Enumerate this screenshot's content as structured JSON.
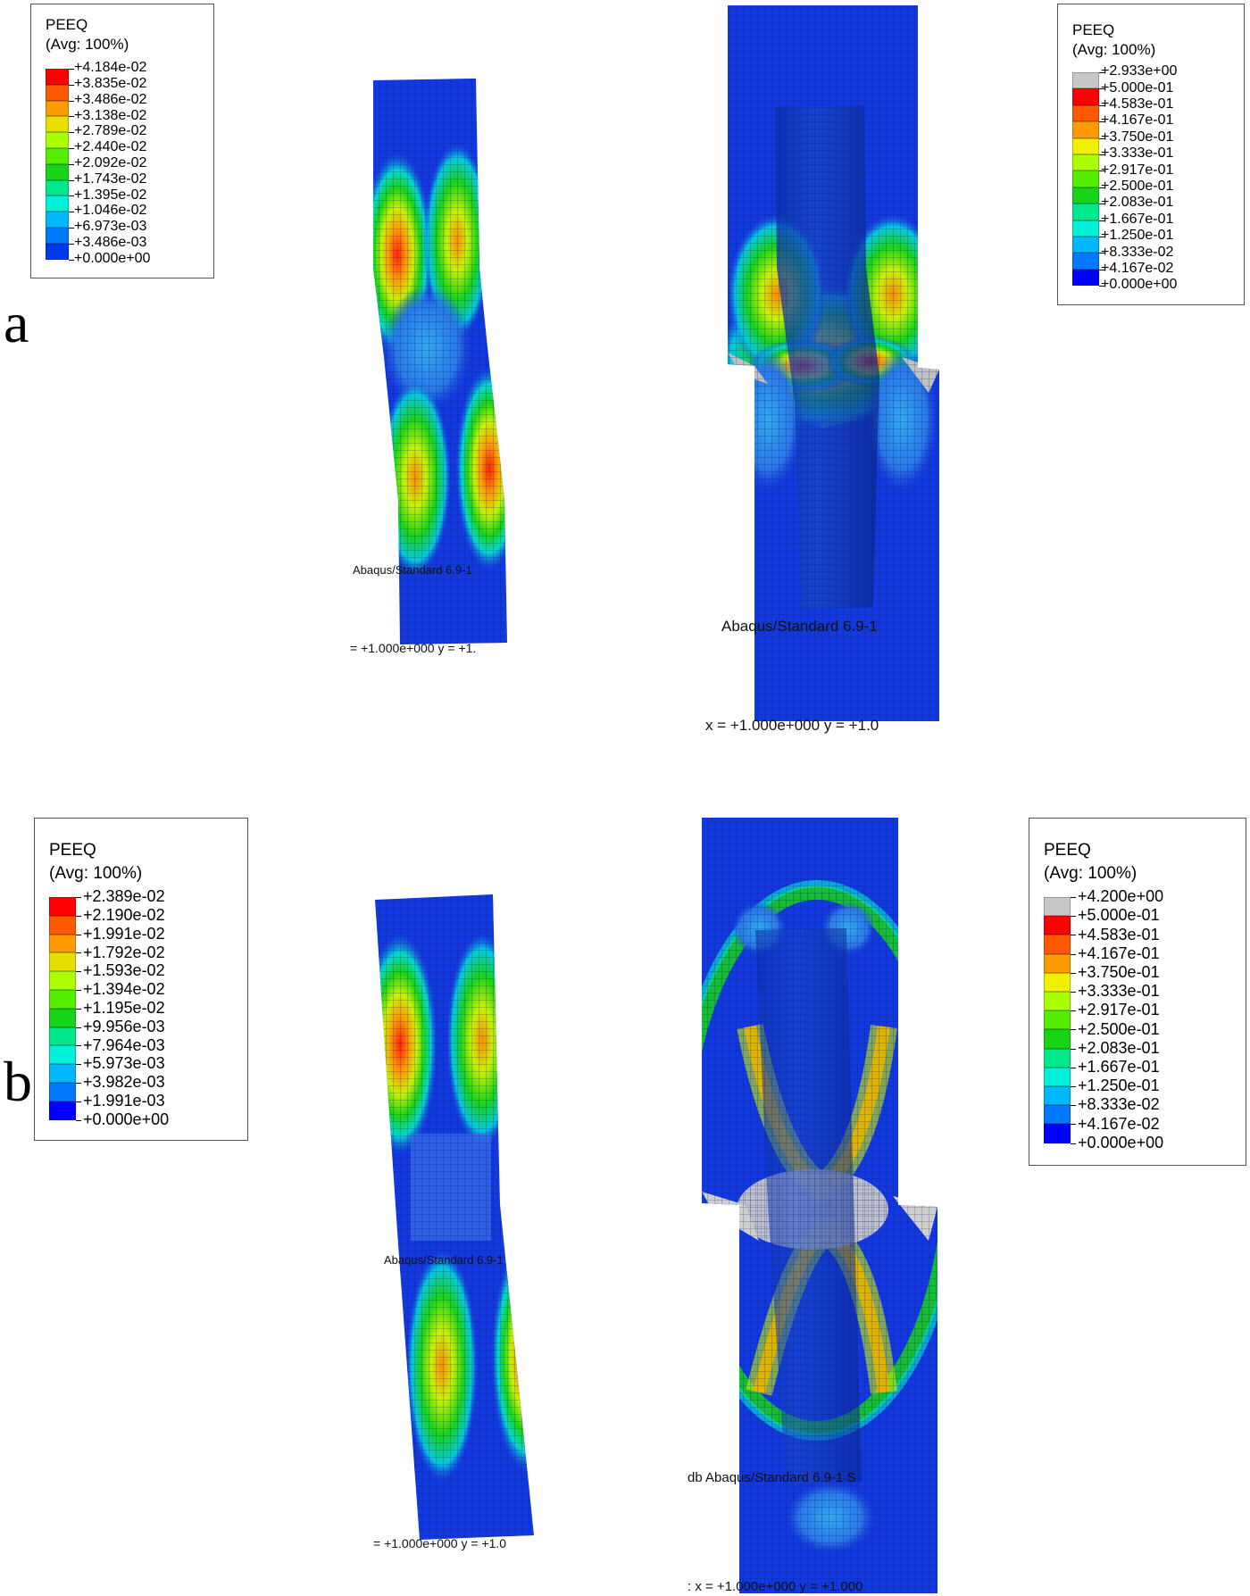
{
  "panels": [
    {
      "id": "a",
      "label": "a"
    },
    {
      "id": "b",
      "label": "b"
    }
  ],
  "legends": {
    "a_left": {
      "title": "PEEQ",
      "subtitle": "(Avg: 100%)",
      "values": [
        "+4.184e-02",
        "+3.835e-02",
        "+3.486e-02",
        "+3.138e-02",
        "+2.789e-02",
        "+2.440e-02",
        "+2.092e-02",
        "+1.743e-02",
        "+1.395e-02",
        "+1.046e-02",
        "+6.973e-03",
        "+3.486e-03",
        "+0.000e+00"
      ],
      "colors": [
        "#ff0000",
        "#ff5a00",
        "#ff9a00",
        "#e8e000",
        "#aaff00",
        "#55ee00",
        "#18d418",
        "#00e88c",
        "#00f0d8",
        "#00b8ff",
        "#0078ff",
        "#0038f0"
      ]
    },
    "a_right": {
      "title": "PEEQ",
      "subtitle": "(Avg: 100%)",
      "values": [
        "+2.933e+00",
        "+5.000e-01",
        "+4.583e-01",
        "+4.167e-01",
        "+3.750e-01",
        "+3.333e-01",
        "+2.917e-01",
        "+2.500e-01",
        "+2.083e-01",
        "+1.667e-01",
        "+1.250e-01",
        "+8.333e-02",
        "+4.167e-02",
        "+0.000e+00"
      ],
      "colors": [
        "#c8c8c8",
        "#ff0000",
        "#ff5a00",
        "#ff9a00",
        "#f0f000",
        "#aaff00",
        "#55ee00",
        "#18d418",
        "#00e88c",
        "#00f0d8",
        "#00b8ff",
        "#0078ff",
        "#0000ff"
      ]
    },
    "b_left": {
      "title": "PEEQ",
      "subtitle": "(Avg: 100%)",
      "values": [
        "+2.389e-02",
        "+2.190e-02",
        "+1.991e-02",
        "+1.792e-02",
        "+1.593e-02",
        "+1.394e-02",
        "+1.195e-02",
        "+9.956e-03",
        "+7.964e-03",
        "+5.973e-03",
        "+3.982e-03",
        "+1.991e-03",
        "+0.000e+00"
      ],
      "colors": [
        "#ff0000",
        "#ff5a00",
        "#ff9a00",
        "#e8e000",
        "#aaff00",
        "#55ee00",
        "#18d418",
        "#00e88c",
        "#00f0d8",
        "#00b8ff",
        "#0078ff",
        "#0000ff"
      ]
    },
    "b_right": {
      "title": "PEEQ",
      "subtitle": "(Avg: 100%)",
      "values": [
        "+4.200e+00",
        "+5.000e-01",
        "+4.583e-01",
        "+4.167e-01",
        "+3.750e-01",
        "+3.333e-01",
        "+2.917e-01",
        "+2.500e-01",
        "+2.083e-01",
        "+1.667e-01",
        "+1.250e-01",
        "+8.333e-02",
        "+4.167e-02",
        "+0.000e+00"
      ],
      "colors": [
        "#c8c8c8",
        "#ff0000",
        "#ff5a00",
        "#ff9a00",
        "#f0f000",
        "#aaff00",
        "#55ee00",
        "#18d418",
        "#00e88c",
        "#00f0d8",
        "#00b8ff",
        "#0078ff",
        "#0000ff"
      ]
    }
  },
  "watermarks": {
    "a_left": "Abaqus/Standard 6.9-1",
    "a_right": "Abaqus/Standard 6.9-1",
    "b_left": "Abaqus/Standard 6.9-1",
    "b_right": "db   Abaqus/Standard 6.9-1   S"
  },
  "coords": {
    "a_left": "= +1.000e+000  y = +1.",
    "a_right": "x = +1.000e+000  y = +1.0",
    "b_left": "= +1.000e+000  y = +1.0",
    "b_right": ": x = +1.000e+000  y = +1.000"
  }
}
